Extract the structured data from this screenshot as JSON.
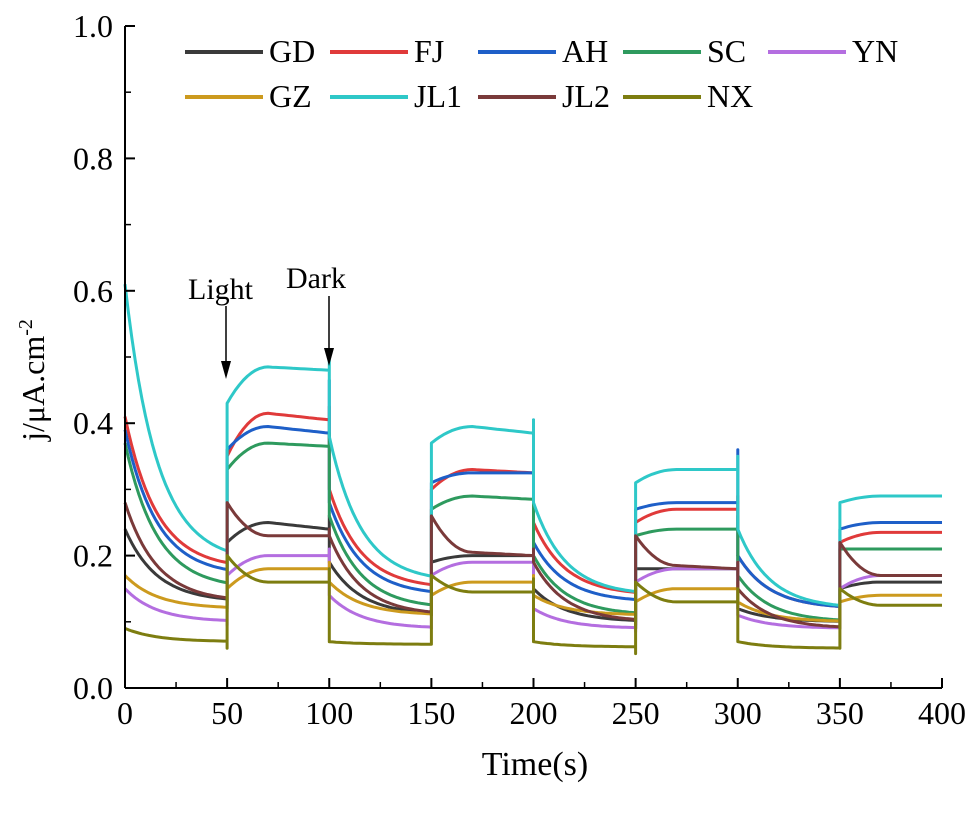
{
  "chart_data": {
    "type": "line",
    "title": "",
    "xlabel": "Time(s)",
    "ylabel": "j/μA.cm",
    "ylabel_sup": "-2",
    "xlim": [
      0,
      400
    ],
    "ylim": [
      0,
      1.0
    ],
    "xticks": [
      0,
      50,
      100,
      150,
      200,
      250,
      300,
      350,
      400
    ],
    "xtick_labels": [
      "0",
      "50",
      "100",
      "150",
      "200",
      "250",
      "300",
      "350",
      "400"
    ],
    "yticks": [
      0.0,
      0.2,
      0.4,
      0.6,
      0.8,
      1.0
    ],
    "ytick_labels": [
      "0.0",
      "0.2",
      "0.4",
      "0.6",
      "0.8",
      "1.0"
    ],
    "grid": false,
    "legend_position": "top",
    "annotations": [
      {
        "text": "Light",
        "x": 50
      },
      {
        "text": "Dark",
        "x": 100
      }
    ],
    "light_on_times": [
      50,
      150,
      250,
      350
    ],
    "light_off_times": [
      100,
      200,
      300
    ],
    "series": [
      {
        "name": "GD",
        "color": "#3a3a3a",
        "spike": 0.02,
        "dark": [
          [
            0.24,
            0.13
          ],
          [
            0.19,
            0.11
          ],
          [
            0.15,
            0.1
          ],
          [
            0.12,
            0.1
          ]
        ],
        "light": [
          [
            0.22,
            0.25,
            0.24
          ],
          [
            0.19,
            0.2,
            0.2
          ],
          [
            0.18,
            0.18,
            0.18
          ],
          [
            0.15,
            0.16,
            0.16
          ]
        ]
      },
      {
        "name": "FJ",
        "color": "#e03a3a",
        "spike": 0.02,
        "dark": [
          [
            0.41,
            0.18
          ],
          [
            0.3,
            0.15
          ],
          [
            0.25,
            0.14
          ],
          [
            0.2,
            0.12
          ]
        ],
        "light": [
          [
            0.35,
            0.415,
            0.405
          ],
          [
            0.3,
            0.33,
            0.325
          ],
          [
            0.25,
            0.27,
            0.27
          ],
          [
            0.22,
            0.235,
            0.235
          ]
        ]
      },
      {
        "name": "AH",
        "color": "#1e5fc8",
        "spike": 0.08,
        "dark": [
          [
            0.39,
            0.17
          ],
          [
            0.28,
            0.14
          ],
          [
            0.22,
            0.13
          ],
          [
            0.2,
            0.12
          ]
        ],
        "light": [
          [
            0.36,
            0.395,
            0.385
          ],
          [
            0.31,
            0.325,
            0.325
          ],
          [
            0.27,
            0.28,
            0.28
          ],
          [
            0.24,
            0.25,
            0.25
          ]
        ]
      },
      {
        "name": "SC",
        "color": "#2e9a5e",
        "spike": 0.02,
        "dark": [
          [
            0.37,
            0.15
          ],
          [
            0.26,
            0.12
          ],
          [
            0.2,
            0.11
          ],
          [
            0.17,
            0.1
          ]
        ],
        "light": [
          [
            0.33,
            0.37,
            0.365
          ],
          [
            0.27,
            0.29,
            0.285
          ],
          [
            0.23,
            0.24,
            0.24
          ],
          [
            0.21,
            0.21,
            0.21
          ]
        ]
      },
      {
        "name": "YN",
        "color": "#b46ee0",
        "spike": 0.01,
        "dark": [
          [
            0.15,
            0.1
          ],
          [
            0.14,
            0.09
          ],
          [
            0.12,
            0.09
          ],
          [
            0.11,
            0.09
          ]
        ],
        "light": [
          [
            0.17,
            0.2,
            0.2
          ],
          [
            0.17,
            0.19,
            0.19
          ],
          [
            0.16,
            0.18,
            0.18
          ],
          [
            0.15,
            0.17,
            0.17
          ]
        ]
      },
      {
        "name": "GZ",
        "color": "#cc9a1e",
        "spike": 0.01,
        "dark": [
          [
            0.17,
            0.12
          ],
          [
            0.16,
            0.11
          ],
          [
            0.14,
            0.11
          ],
          [
            0.13,
            0.1
          ]
        ],
        "light": [
          [
            0.15,
            0.18,
            0.18
          ],
          [
            0.14,
            0.16,
            0.16
          ],
          [
            0.13,
            0.15,
            0.15
          ],
          [
            0.13,
            0.14,
            0.14
          ]
        ]
      },
      {
        "name": "JL1",
        "color": "#2ec8c8",
        "spike": 0.02,
        "dark": [
          [
            0.61,
            0.19
          ],
          [
            0.38,
            0.16
          ],
          [
            0.28,
            0.14
          ],
          [
            0.24,
            0.12
          ]
        ],
        "light": [
          [
            0.43,
            0.485,
            0.48
          ],
          [
            0.37,
            0.395,
            0.385
          ],
          [
            0.31,
            0.33,
            0.33
          ],
          [
            0.28,
            0.29,
            0.29
          ]
        ]
      },
      {
        "name": "JL2",
        "color": "#7a3a3a",
        "spike": 0.01,
        "dark": [
          [
            0.28,
            0.13
          ],
          [
            0.23,
            0.11
          ],
          [
            0.19,
            0.1
          ],
          [
            0.15,
            0.09
          ]
        ],
        "light": [
          [
            0.28,
            0.23,
            0.23
          ],
          [
            0.26,
            0.205,
            0.2
          ],
          [
            0.23,
            0.185,
            0.18
          ],
          [
            0.22,
            0.17,
            0.17
          ]
        ]
      },
      {
        "name": "NX",
        "color": "#7d7d10",
        "spike": 0.02,
        "dark": [
          [
            0.09,
            0.07
          ],
          [
            0.07,
            0.066
          ],
          [
            0.07,
            0.062
          ],
          [
            0.07,
            0.06
          ]
        ],
        "light": [
          [
            0.2,
            0.16,
            0.16
          ],
          [
            0.17,
            0.145,
            0.145
          ],
          [
            0.16,
            0.13,
            0.13
          ],
          [
            0.15,
            0.125,
            0.125
          ]
        ]
      }
    ]
  }
}
